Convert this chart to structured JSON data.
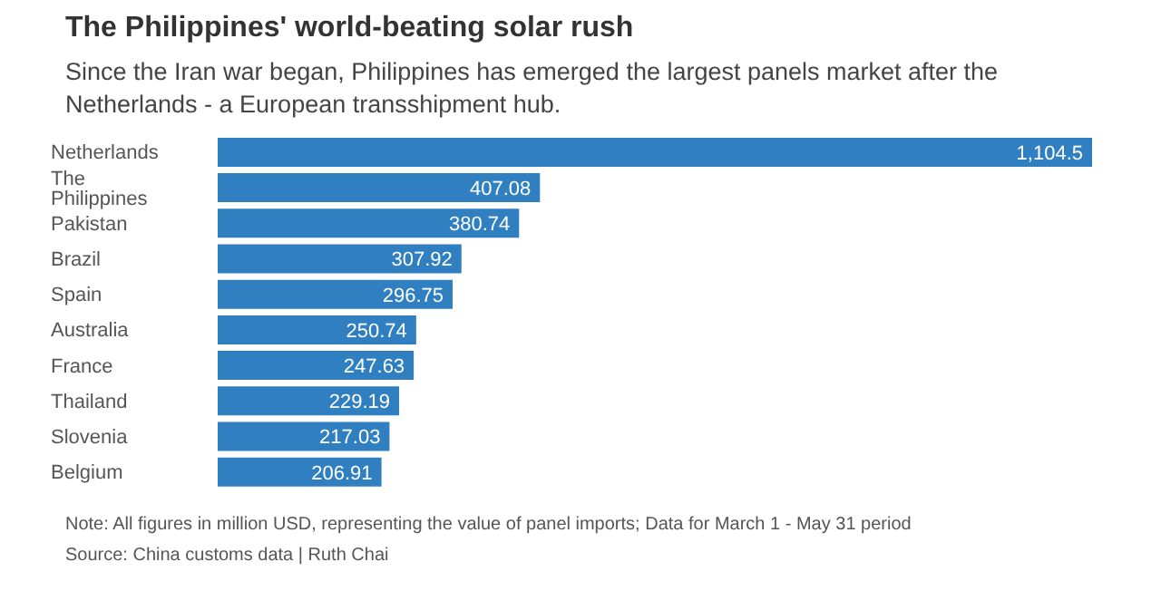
{
  "chart_data": {
    "type": "bar",
    "orientation": "horizontal",
    "title": "The Philippines' world-beating solar rush",
    "subtitle": "Since the Iran war began, Philippines has emerged the largest panels market after the Netherlands - a European transshipment hub.",
    "categories": [
      "Netherlands",
      "The Philippines",
      "Pakistan",
      "Brazil",
      "Spain",
      "Australia",
      "France",
      "Thailand",
      "Slovenia",
      "Belgium"
    ],
    "values": [
      1104.5,
      407.08,
      380.74,
      307.92,
      296.75,
      250.74,
      247.63,
      229.19,
      217.03,
      206.91
    ],
    "value_labels": [
      "1,104.5",
      "407.08",
      "380.74",
      "307.92",
      "296.75",
      "250.74",
      "247.63",
      "229.19",
      "217.03",
      "206.91"
    ],
    "color": "#2f7fc1",
    "annotations": [
      "Note: All figures in million USD, representing the value of panel imports; Data for March 1 - May 31 period",
      "Source: China customs data | Ruth Chai"
    ]
  }
}
